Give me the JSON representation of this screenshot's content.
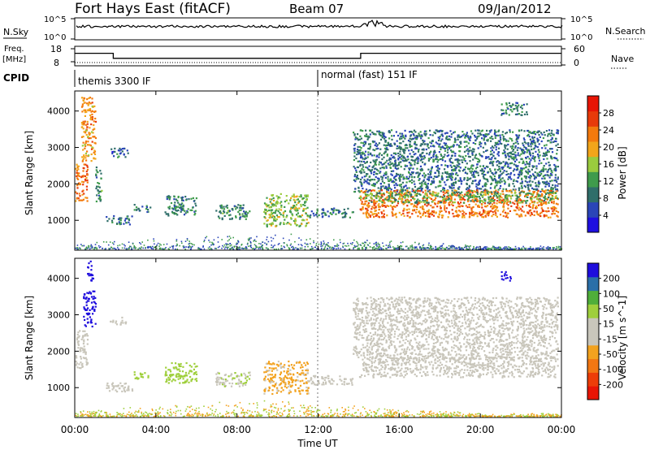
{
  "header": {
    "station": "Fort Hays East (fitACF)",
    "beam": "Beam 07",
    "date": "09/Jan/2012"
  },
  "top_panels": {
    "nsky_label": "N.Sky",
    "nsearch_label": "N.Search",
    "noise_ticks_left": [
      "10^5",
      "10^0"
    ],
    "noise_ticks_right": [
      "10^5",
      "10^0"
    ],
    "freq_label_1": "Freq.",
    "freq_label_2": "[MHz]",
    "freq_ticks": [
      "18",
      "8"
    ],
    "nave_label": "Nave",
    "nave_ticks": [
      "60",
      "0"
    ],
    "cpid_label": "CPID",
    "cpid_segments": [
      {
        "label": "themis 3300 IF",
        "start_hour": 0,
        "end_hour": 12
      },
      {
        "label": "normal (fast) 151 IF",
        "start_hour": 12,
        "end_hour": 24
      }
    ],
    "freq_series": [
      {
        "hour": 0,
        "mhz": 14.5
      },
      {
        "hour": 1.9,
        "mhz": 14.5
      },
      {
        "hour": 1.9,
        "mhz": 10.6
      },
      {
        "hour": 14.1,
        "mhz": 10.6
      },
      {
        "hour": 14.1,
        "mhz": 14.5
      },
      {
        "hour": 24,
        "mhz": 14.5
      }
    ]
  },
  "chart_data": [
    {
      "type": "heatmap",
      "title": "",
      "xlabel": "Time UT",
      "ylabel": "Slant Range [km]",
      "x_ticks": [
        "00:00",
        "04:00",
        "08:00",
        "12:00",
        "16:00",
        "20:00",
        "00:00"
      ],
      "x_tick_hours": [
        0,
        4,
        8,
        12,
        16,
        20,
        24
      ],
      "xlim": [
        0,
        24
      ],
      "y_ticks": [
        1000,
        2000,
        3000,
        4000
      ],
      "ylim": [
        180,
        4550
      ],
      "colorbar": {
        "label": "Power [dB]",
        "ticks": [
          "28",
          "24",
          "20",
          "16",
          "12",
          "8",
          "4"
        ],
        "range": [
          0,
          30
        ],
        "colors": [
          "#1f0fe0",
          "#2a45b8",
          "#2f6e6a",
          "#3f9b4c",
          "#9acb3e",
          "#f2a51a",
          "#f37a0d",
          "#e83a0a",
          "#e81505"
        ]
      },
      "regions": [
        {
          "t0": 0.0,
          "t1": 0.6,
          "r0": 1550,
          "r1": 2600,
          "level": 22
        },
        {
          "t0": 0.3,
          "t1": 1.0,
          "r0": 2600,
          "r1": 4400,
          "level": 20
        },
        {
          "t0": 1.0,
          "t1": 1.3,
          "r0": 1500,
          "r1": 2500,
          "level": 10
        },
        {
          "t0": 1.7,
          "t1": 2.6,
          "r0": 2750,
          "r1": 3000,
          "level": 7
        },
        {
          "t0": 1.5,
          "t1": 2.8,
          "r0": 900,
          "r1": 1150,
          "level": 8
        },
        {
          "t0": 2.9,
          "t1": 3.7,
          "r0": 1250,
          "r1": 1450,
          "level": 9
        },
        {
          "t0": 4.4,
          "t1": 6.0,
          "r0": 1150,
          "r1": 1700,
          "level": 9
        },
        {
          "t0": 6.9,
          "t1": 8.6,
          "r0": 1050,
          "r1": 1450,
          "level": 10
        },
        {
          "t0": 9.3,
          "t1": 11.5,
          "r0": 850,
          "r1": 1750,
          "level": 14
        },
        {
          "t0": 11.5,
          "t1": 13.7,
          "r0": 1100,
          "r1": 1350,
          "level": 8
        },
        {
          "t0": 13.7,
          "t1": 23.8,
          "r0": 1800,
          "r1": 3500,
          "level": 8
        },
        {
          "t0": 14.0,
          "t1": 23.8,
          "r0": 1100,
          "r1": 1850,
          "level": 22
        },
        {
          "t0": 14.0,
          "t1": 23.8,
          "r0": 1500,
          "r1": 1800,
          "level": 12
        },
        {
          "t0": 21.0,
          "t1": 22.3,
          "r0": 3900,
          "r1": 4250,
          "level": 9
        }
      ]
    },
    {
      "type": "heatmap",
      "title": "",
      "xlabel": "Time UT",
      "ylabel": "Slant Range [km]",
      "x_ticks": [
        "00:00",
        "04:00",
        "08:00",
        "12:00",
        "16:00",
        "20:00",
        "00:00"
      ],
      "x_tick_hours": [
        0,
        4,
        8,
        12,
        16,
        20,
        24
      ],
      "xlim": [
        0,
        24
      ],
      "y_ticks": [
        1000,
        2000,
        3000,
        4000
      ],
      "ylim": [
        180,
        4550
      ],
      "colorbar": {
        "label": "Velocity [m s^-1]",
        "ticks": [
          "200",
          "100",
          "50",
          "15",
          "-15",
          "-50",
          "-100",
          "-200"
        ],
        "range": [
          -250,
          250
        ],
        "colors": [
          "#e81505",
          "#ed3d08",
          "#f27713",
          "#f3a21e",
          "#c9c6bb",
          "#c9c6bb",
          "#9fcf3c",
          "#4fae3a",
          "#2a6fa8",
          "#1e0ddd"
        ]
      },
      "regions": [
        {
          "t0": 0.0,
          "t1": 0.6,
          "r0": 1550,
          "r1": 2600,
          "level": 0
        },
        {
          "t0": 0.4,
          "t1": 1.0,
          "r0": 2700,
          "r1": 3700,
          "level": 230
        },
        {
          "t0": 0.6,
          "t1": 0.9,
          "r0": 3900,
          "r1": 4500,
          "level": 230
        },
        {
          "t0": 1.7,
          "t1": 2.5,
          "r0": 2750,
          "r1": 2950,
          "level": 0
        },
        {
          "t0": 1.5,
          "t1": 2.9,
          "r0": 900,
          "r1": 1150,
          "level": 30
        },
        {
          "t0": 2.9,
          "t1": 3.7,
          "r0": 1250,
          "r1": 1450,
          "level": 80
        },
        {
          "t0": 4.4,
          "t1": 6.0,
          "r0": 1150,
          "r1": 1700,
          "level": 70
        },
        {
          "t0": 6.9,
          "t1": 8.6,
          "r0": 1050,
          "r1": 1450,
          "level": 40
        },
        {
          "t0": 9.3,
          "t1": 11.5,
          "r0": 850,
          "r1": 1750,
          "level": -60
        },
        {
          "t0": 11.5,
          "t1": 13.7,
          "r0": 1100,
          "r1": 1350,
          "level": 0
        },
        {
          "t0": 13.7,
          "t1": 23.8,
          "r0": 1800,
          "r1": 3500,
          "level": 0
        },
        {
          "t0": 14.0,
          "t1": 23.8,
          "r0": 1300,
          "r1": 1850,
          "level": 0
        },
        {
          "t0": 21.0,
          "t1": 21.5,
          "r0": 3950,
          "r1": 4200,
          "level": 230
        }
      ]
    }
  ],
  "colors": {
    "axis": "#000000",
    "dashed_midnight": "#777777"
  }
}
